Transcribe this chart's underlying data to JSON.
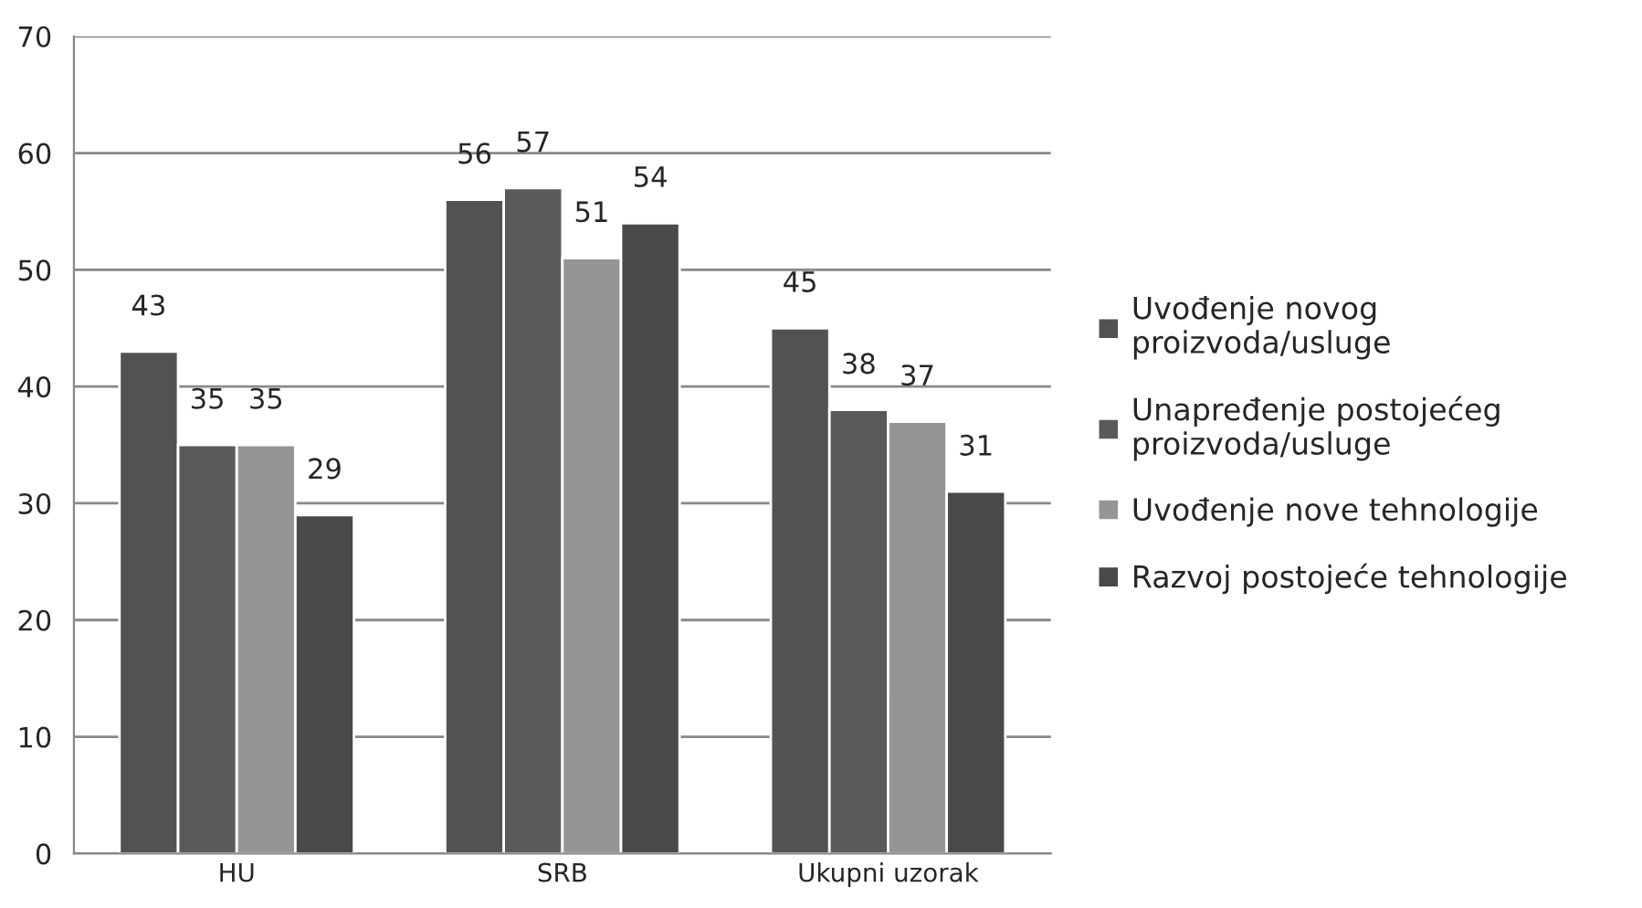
{
  "chart_data": {
    "type": "bar",
    "categories": [
      "HU",
      "SRB",
      "Ukupni uzorak"
    ],
    "series": [
      {
        "name": "Uvođenje novog\nproizvoda/usluge",
        "color": "#525252",
        "values": [
          43,
          56,
          45
        ]
      },
      {
        "name": "Unapređenje postojećeg\nproizvoda/usluge",
        "color": "#5a5a5a",
        "values": [
          35,
          57,
          38
        ]
      },
      {
        "name": "Uvođenje nove tehnologije",
        "color": "#959595",
        "values": [
          35,
          51,
          37
        ]
      },
      {
        "name": "Razvoj postojeće tehnologije",
        "color": "#494949",
        "values": [
          29,
          54,
          31
        ]
      }
    ],
    "ylim": [
      0,
      70
    ],
    "yticks": [
      0,
      10,
      20,
      30,
      40,
      50,
      60,
      70
    ],
    "grid": "y",
    "legend": "right",
    "data_labels": true
  }
}
